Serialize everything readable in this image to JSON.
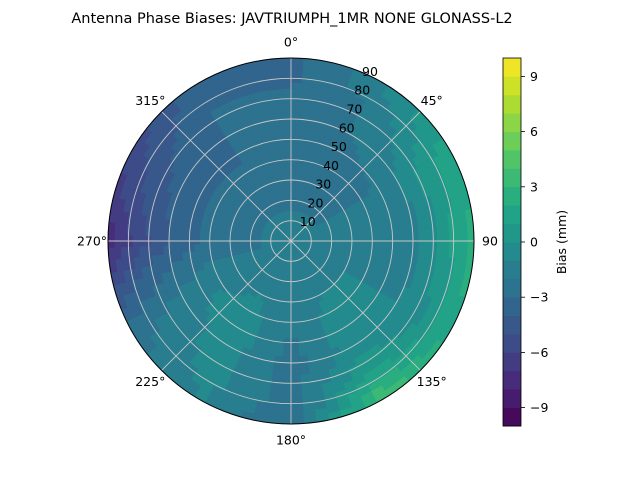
{
  "chart_data": {
    "type": "heatmap",
    "projection": "polar",
    "title": "Antenna Phase Biases: JAVTRIUMPH_1MR  NONE GLONASS-L2",
    "theta_zero": "top",
    "theta_direction": "clockwise",
    "theta_ticks": [
      {
        "deg": 0,
        "label": "0°"
      },
      {
        "deg": 45,
        "label": "45°"
      },
      {
        "deg": 90,
        "label": "90"
      },
      {
        "deg": 135,
        "label": "135°"
      },
      {
        "deg": 180,
        "label": "180°"
      },
      {
        "deg": 225,
        "label": "225°"
      },
      {
        "deg": 270,
        "label": "270°"
      },
      {
        "deg": 315,
        "label": "315°"
      }
    ],
    "radial_range": [
      0,
      90
    ],
    "radial_ticks": [
      {
        "value": 10,
        "label": "10"
      },
      {
        "value": 20,
        "label": "20"
      },
      {
        "value": 30,
        "label": "30"
      },
      {
        "value": 40,
        "label": "40"
      },
      {
        "value": 50,
        "label": "50"
      },
      {
        "value": 60,
        "label": "60"
      },
      {
        "value": 70,
        "label": "70"
      },
      {
        "value": 80,
        "label": "80"
      },
      {
        "value": 90,
        "label": "90"
      }
    ],
    "grid": true,
    "colormap": "viridis",
    "colorbar": {
      "label": "Bias (mm)",
      "range": [
        -10,
        10
      ],
      "levels": 20,
      "ticks": [
        {
          "value": 9,
          "label": "9"
        },
        {
          "value": 6,
          "label": "6"
        },
        {
          "value": 3,
          "label": "3"
        },
        {
          "value": 0,
          "label": "0"
        },
        {
          "value": -3,
          "label": "−3"
        },
        {
          "value": -6,
          "label": "−6"
        },
        {
          "value": -9,
          "label": "−9"
        }
      ]
    },
    "azimuth_deg": [
      0,
      30,
      60,
      90,
      120,
      150,
      180,
      210,
      240,
      270,
      300,
      330
    ],
    "zenith_deg": [
      0,
      15,
      30,
      45,
      60,
      75,
      90
    ],
    "bias_mm": [
      [
        -2.0,
        -2.0,
        -2.0,
        -2.0,
        -2.0,
        -2.0,
        -2.0,
        -2.0,
        -2.0,
        -2.0,
        -2.0,
        -2.0
      ],
      [
        -2.0,
        -2.0,
        -2.0,
        -2.0,
        -2.0,
        -1.5,
        -1.5,
        -1.5,
        -2.0,
        -2.0,
        -2.0,
        -2.0
      ],
      [
        -2.5,
        -2.5,
        -2.0,
        -2.0,
        -1.0,
        -1.0,
        -1.5,
        -1.0,
        -1.5,
        -2.5,
        -2.5,
        -2.5
      ],
      [
        -2.5,
        -2.5,
        -2.0,
        -1.5,
        -1.0,
        -0.5,
        -2.0,
        -0.5,
        -1.0,
        -3.0,
        -3.0,
        -3.0
      ],
      [
        -3.0,
        -2.0,
        -1.0,
        -1.5,
        -1.0,
        -0.5,
        -2.5,
        -0.5,
        -1.5,
        -4.0,
        -3.5,
        -3.0
      ],
      [
        -3.0,
        -2.0,
        0.5,
        0.5,
        0.0,
        1.0,
        -2.5,
        -0.5,
        -2.0,
        -5.5,
        -4.5,
        -3.0
      ],
      [
        -3.5,
        -1.0,
        1.5,
        2.5,
        2.0,
        4.0,
        -3.0,
        -1.0,
        -2.5,
        -7.5,
        -5.5,
        -3.5
      ]
    ]
  }
}
